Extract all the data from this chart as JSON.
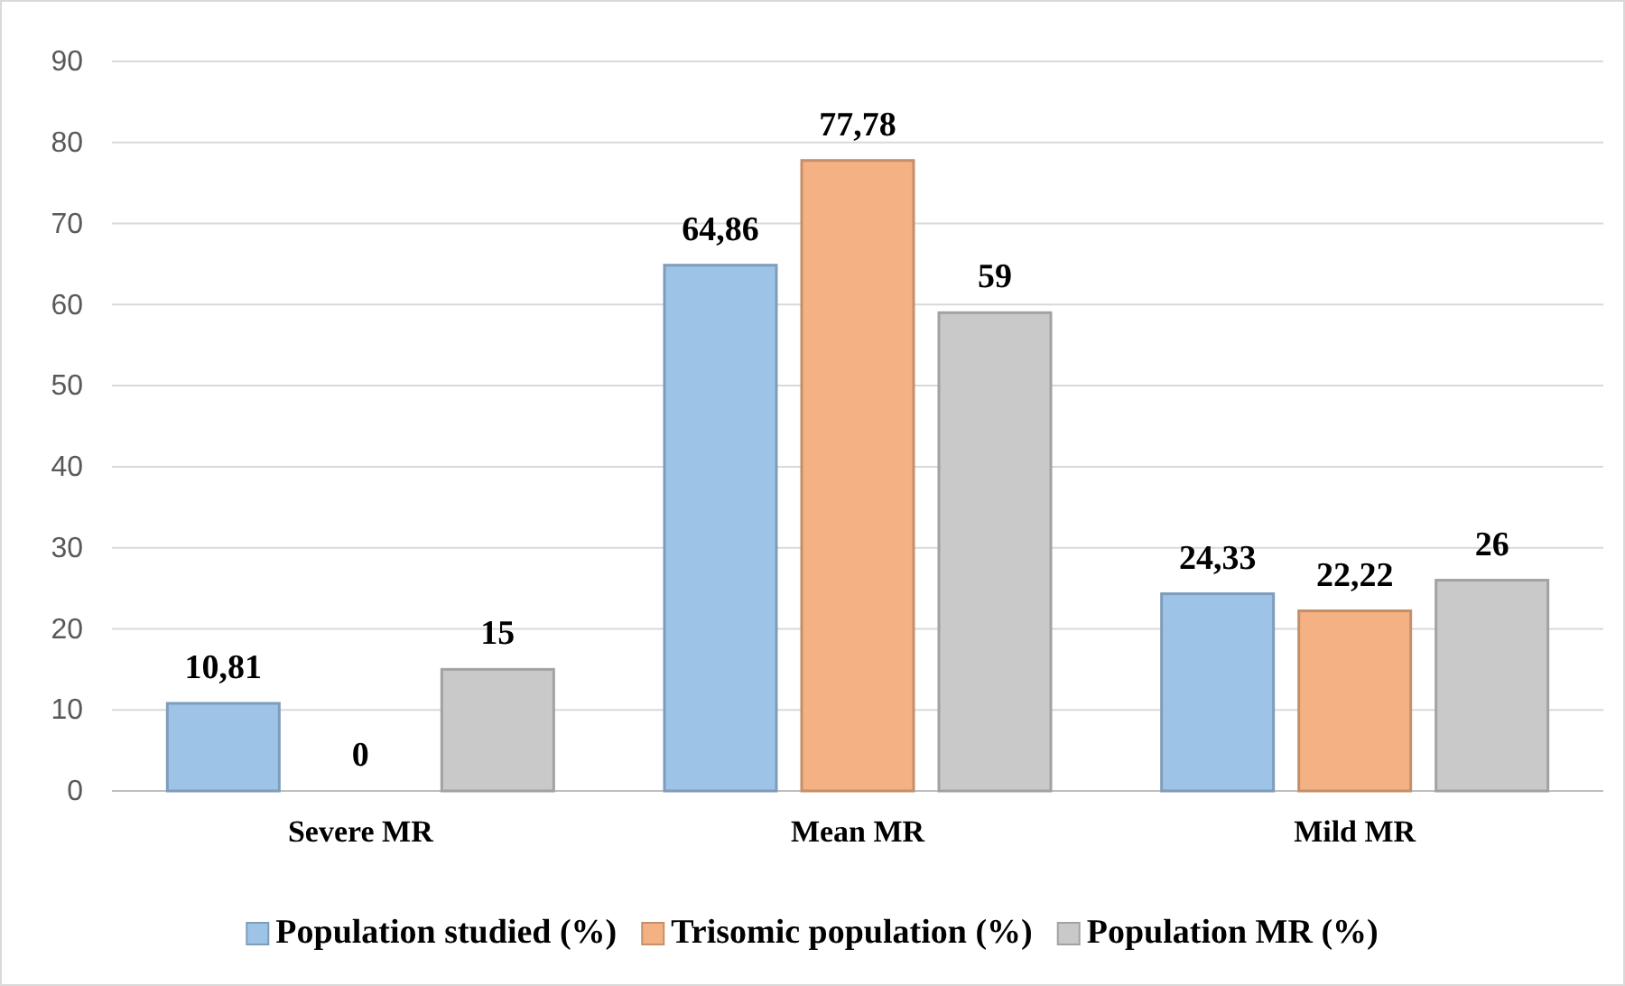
{
  "chart_data": {
    "type": "bar",
    "categories": [
      "Severe MR",
      "Mean MR",
      "Mild MR"
    ],
    "series": [
      {
        "name": "Population studied (%)",
        "color": "#9dc3e6",
        "values": [
          10.81,
          64.86,
          24.33
        ],
        "value_labels": [
          "10,81",
          "64,86",
          "24,33"
        ]
      },
      {
        "name": "Trisomic population (%)",
        "color": "#f4b183",
        "values": [
          0,
          77.78,
          22.22
        ],
        "value_labels": [
          "0",
          "77,78",
          "22,22"
        ]
      },
      {
        "name": "Population MR (%)",
        "color": "#c9c9c9",
        "values": [
          15,
          59,
          26
        ],
        "value_labels": [
          "15",
          "59",
          "26"
        ]
      }
    ],
    "ylim": [
      0,
      90
    ],
    "yticks": [
      0,
      10,
      20,
      30,
      40,
      50,
      60,
      70,
      80,
      90
    ],
    "grid": "y",
    "legend": "bottom"
  }
}
